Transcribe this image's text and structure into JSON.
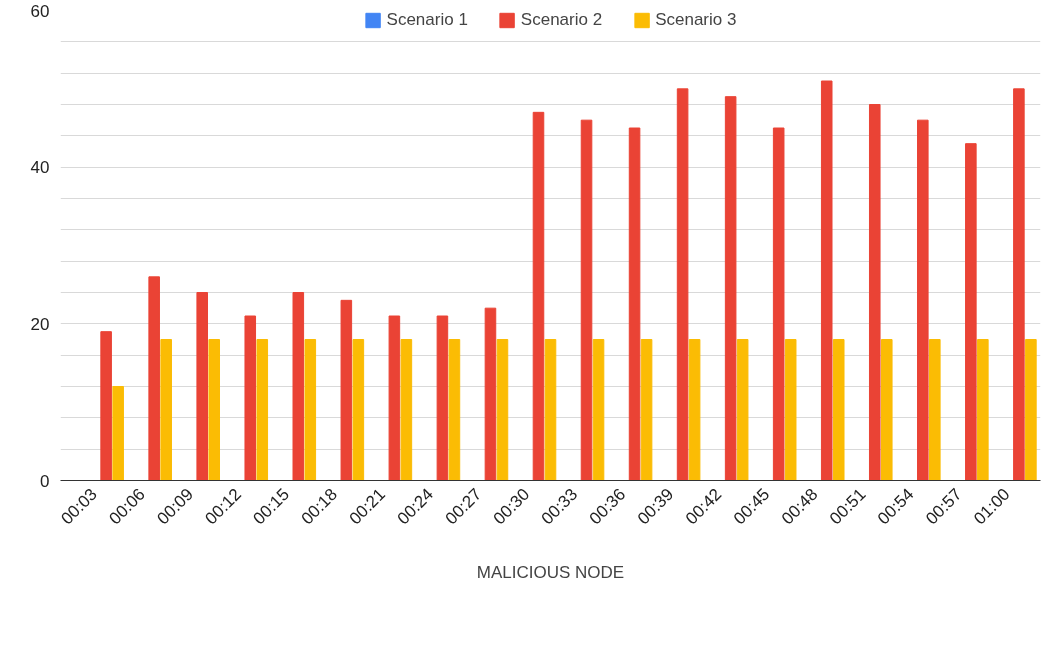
{
  "chart_data": {
    "type": "bar",
    "xlabel": "MALICIOUS NODE",
    "categories": [
      "00:03",
      "00:06",
      "00:09",
      "00:12",
      "00:15",
      "00:18",
      "00:21",
      "00:24",
      "00:27",
      "00:30",
      "00:33",
      "00:36",
      "00:39",
      "00:42",
      "00:45",
      "00:48",
      "00:51",
      "00:54",
      "00:57",
      "01:00"
    ],
    "series": [
      {
        "name": "Scenario 1",
        "color": "#4285f4",
        "values": [
          null,
          null,
          null,
          null,
          null,
          null,
          null,
          null,
          null,
          null,
          null,
          null,
          null,
          null,
          null,
          null,
          null,
          null,
          null,
          null
        ]
      },
      {
        "name": "Scenario 2",
        "color": "#ea4335",
        "values": [
          19,
          26,
          24,
          21,
          24,
          23,
          21,
          21,
          22,
          47,
          46,
          45,
          50,
          49,
          45,
          51,
          48,
          46,
          43,
          50
        ]
      },
      {
        "name": "Scenario 3",
        "color": "#fbbc04",
        "values": [
          12,
          18,
          18,
          18,
          18,
          18,
          18,
          18,
          18,
          18,
          18,
          18,
          18,
          18,
          18,
          18,
          18,
          18,
          18,
          18
        ]
      }
    ],
    "ylim": [
      0,
      60
    ],
    "yticks": [
      0,
      {
        "value": 4,
        "label": null
      },
      {
        "value": 8,
        "label": null
      },
      {
        "value": 12,
        "label": null
      },
      {
        "value": 16,
        "label": null
      },
      20,
      {
        "value": 24,
        "label": null
      },
      {
        "value": 28,
        "label": null
      },
      {
        "value": 32,
        "label": null
      },
      {
        "value": 36,
        "label": null
      },
      40,
      {
        "value": 44,
        "label": null
      },
      {
        "value": 48,
        "label": null
      },
      {
        "value": 52,
        "label": null
      },
      {
        "value": 56,
        "label": null
      },
      60
    ],
    "grid": "y",
    "legend": "top"
  }
}
